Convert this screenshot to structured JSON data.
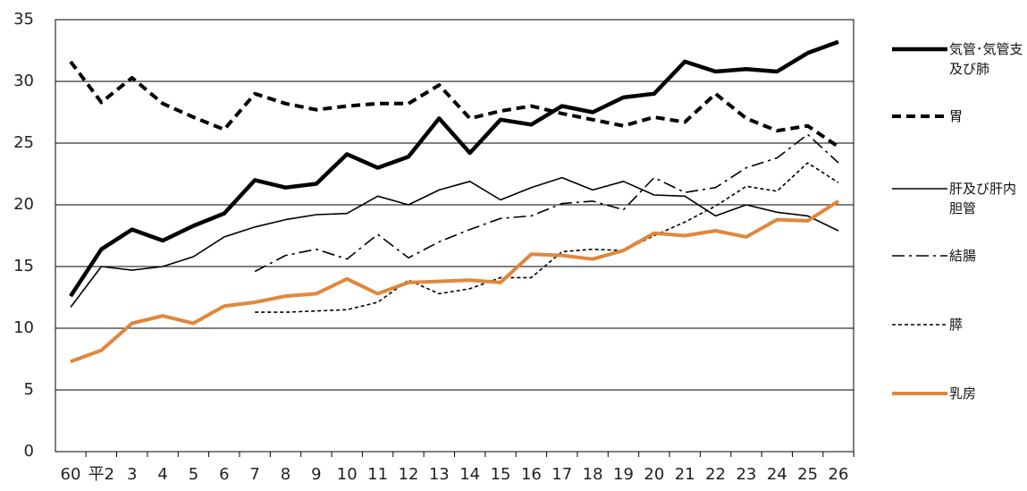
{
  "chart_data": {
    "type": "line",
    "categories": [
      "60",
      "平2",
      "3",
      "4",
      "5",
      "6",
      "7",
      "8",
      "9",
      "10",
      "11",
      "12",
      "13",
      "14",
      "15",
      "16",
      "17",
      "18",
      "19",
      "20",
      "21",
      "22",
      "23",
      "24",
      "25",
      "26"
    ],
    "ylim": [
      0,
      35
    ],
    "yticks": [
      0,
      5,
      10,
      15,
      20,
      25,
      30,
      35
    ],
    "grid": true,
    "series": [
      {
        "name": "気管･気管支及び肺",
        "color": "#000000",
        "width": 4.5,
        "dash": "solid",
        "values": [
          12.6,
          16.4,
          18.0,
          17.1,
          18.3,
          19.3,
          22.0,
          21.4,
          21.7,
          24.1,
          23.0,
          23.9,
          27.0,
          24.2,
          26.9,
          26.5,
          28.0,
          27.5,
          28.7,
          29.0,
          31.6,
          30.8,
          31.0,
          30.8,
          32.3,
          33.2
        ]
      },
      {
        "name": "胃",
        "color": "#000000",
        "width": 4,
        "dash": "dashed",
        "values": [
          31.6,
          28.3,
          30.3,
          28.2,
          27.1,
          26.1,
          29.0,
          28.2,
          27.7,
          28.0,
          28.2,
          28.2,
          29.7,
          27.0,
          27.6,
          28.0,
          27.4,
          26.9,
          26.4,
          27.1,
          26.7,
          29.0,
          27.0,
          26.0,
          26.4,
          24.7
        ]
      },
      {
        "name": "肝及び肝内胆管",
        "color": "#000000",
        "width": 1.6,
        "dash": "solid",
        "values": [
          11.7,
          15.0,
          14.7,
          15.0,
          15.8,
          17.4,
          18.2,
          18.8,
          19.2,
          19.3,
          20.7,
          20.0,
          21.2,
          21.9,
          20.4,
          21.4,
          22.2,
          21.2,
          21.9,
          20.8,
          20.7,
          19.1,
          20.0,
          19.4,
          19.1,
          17.9
        ]
      },
      {
        "name": "結腸",
        "color": "#000000",
        "width": 1.6,
        "dash": "dashdot",
        "values": [
          null,
          null,
          null,
          null,
          null,
          null,
          14.6,
          15.9,
          16.4,
          15.6,
          17.6,
          15.7,
          17.0,
          18.0,
          18.9,
          19.1,
          20.1,
          20.3,
          19.6,
          22.2,
          21.0,
          21.4,
          23.0,
          23.8,
          25.7,
          23.4
        ]
      },
      {
        "name": "膵",
        "color": "#000000",
        "width": 1.6,
        "dash": "dotted",
        "values": [
          null,
          null,
          null,
          null,
          null,
          null,
          11.3,
          11.3,
          11.4,
          11.5,
          12.1,
          13.9,
          12.8,
          13.2,
          14.1,
          14.1,
          16.2,
          16.4,
          16.3,
          17.5,
          18.6,
          19.9,
          21.5,
          21.1,
          23.4,
          21.8
        ]
      },
      {
        "name": "乳房",
        "color": "#e0873c",
        "width": 4,
        "dash": "solid",
        "values": [
          7.3,
          8.2,
          10.4,
          11.0,
          10.4,
          11.8,
          12.1,
          12.6,
          12.8,
          14.0,
          12.8,
          13.7,
          13.8,
          13.9,
          13.7,
          16.0,
          15.9,
          15.6,
          16.3,
          17.7,
          17.5,
          17.9,
          17.4,
          18.8,
          18.7,
          20.3
        ]
      }
    ]
  }
}
